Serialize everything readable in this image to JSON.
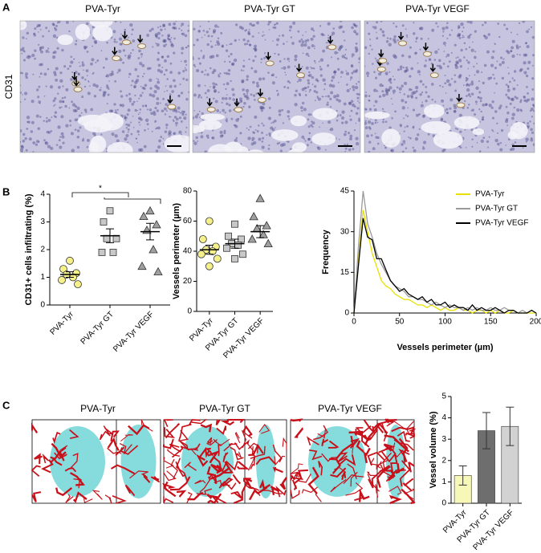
{
  "panel_labels": [
    "A",
    "B",
    "C"
  ],
  "panel_a": {
    "row_label": "CD31",
    "titles": [
      "PVA-Tyr",
      "PVA-Tyr GT",
      "PVA-Tyr VEGF"
    ]
  },
  "panel_c": {
    "titles": [
      "PVA-Tyr",
      "PVA-Tyr GT",
      "PVA-Tyr VEGF"
    ]
  },
  "chart_data": [
    {
      "type": "dot",
      "y_label": "CD31+ cells infiltrating (%)",
      "annotation": "*",
      "categories": [
        "PVA-Tyr",
        "PVA-Tyr GT",
        "PVA-Tyr VEGF"
      ],
      "ylim": [
        0,
        4
      ],
      "yticks": [
        0,
        1,
        2,
        3,
        4
      ],
      "groups": [
        {
          "color": "#f5f08a",
          "marker": "circle",
          "values": [
            1.6,
            1.3,
            1.15,
            1.1,
            1.0,
            0.9,
            0.75
          ],
          "mean": 1.1,
          "error": 0.1
        },
        {
          "color": "#c8c8c8",
          "marker": "square",
          "values": [
            3.4,
            3.0,
            2.4,
            2.4,
            1.9,
            1.9
          ],
          "mean": 2.5,
          "error": 0.25
        },
        {
          "color": "#a0a0a0",
          "marker": "triangle",
          "values": [
            3.4,
            3.2,
            2.9,
            2.7,
            2.0,
            1.4,
            1.2
          ],
          "mean": 2.65,
          "error": 0.3
        }
      ]
    },
    {
      "type": "dot",
      "y_label": "Vessels perimeter (µm)",
      "categories": [
        "PVA-Tyr",
        "PVA-Tyr GT",
        "PVA-Tyr VEGF"
      ],
      "ylim": [
        0,
        80
      ],
      "yticks": [
        0,
        20,
        40,
        60,
        80
      ],
      "groups": [
        {
          "color": "#f5f08a",
          "marker": "circle",
          "values": [
            60,
            48,
            43,
            41,
            40,
            38,
            35,
            30
          ],
          "mean": 41,
          "error": 3
        },
        {
          "color": "#c8c8c8",
          "marker": "square",
          "values": [
            58,
            50,
            48,
            45,
            44,
            42,
            38,
            35
          ],
          "mean": 45,
          "error": 3
        },
        {
          "color": "#a0a0a0",
          "marker": "triangle",
          "values": [
            75,
            63,
            57,
            55,
            51,
            48,
            45
          ],
          "mean": 53,
          "error": 4
        }
      ]
    },
    {
      "type": "line",
      "x_label": "Vessels perimeter (µm)",
      "y_label": "Frequency",
      "legend": "top-right",
      "xlim": [
        0,
        200
      ],
      "xticks": [
        0,
        50,
        100,
        150,
        200
      ],
      "ylim": [
        0,
        45
      ],
      "yticks": [
        0,
        15,
        30,
        45
      ],
      "x": [
        0,
        5,
        10,
        15,
        20,
        25,
        30,
        35,
        40,
        45,
        50,
        55,
        60,
        65,
        70,
        75,
        80,
        85,
        90,
        95,
        100,
        105,
        110,
        115,
        120,
        125,
        130,
        135,
        140,
        145,
        150,
        155,
        160,
        165,
        170,
        175,
        180,
        185,
        190,
        195,
        200
      ],
      "series": [
        {
          "name": "PVA-Tyr",
          "color": "#e8e000",
          "values": [
            0,
            20,
            38,
            30,
            22,
            17,
            12,
            10,
            9,
            7,
            6,
            5,
            5,
            4,
            3,
            3,
            2,
            3,
            2,
            1,
            2,
            1,
            1,
            2,
            1,
            1,
            0,
            1,
            1,
            0,
            1,
            0,
            1,
            0,
            0,
            1,
            0,
            0,
            0,
            0,
            0
          ]
        },
        {
          "name": "PVA-Tyr GT",
          "color": "#9a9a9a",
          "values": [
            0,
            25,
            45,
            33,
            28,
            22,
            18,
            15,
            12,
            10,
            9,
            8,
            6,
            6,
            5,
            5,
            4,
            3,
            4,
            3,
            2,
            3,
            2,
            2,
            1,
            2,
            1,
            2,
            1,
            1,
            2,
            1,
            1,
            2,
            1,
            1,
            0,
            1,
            0,
            1,
            0
          ]
        },
        {
          "name": "PVA-Tyr VEGF",
          "color": "#000000",
          "values": [
            0,
            18,
            35,
            28,
            27,
            20,
            20,
            16,
            12,
            10,
            8,
            9,
            7,
            6,
            5,
            6,
            4,
            5,
            3,
            3,
            4,
            2,
            3,
            2,
            2,
            1,
            3,
            1,
            2,
            1,
            1,
            2,
            1,
            0,
            1,
            1,
            0,
            0,
            0,
            1,
            0
          ]
        }
      ]
    },
    {
      "type": "bar",
      "y_label": "Vessel volume (%)",
      "categories": [
        "PVA-Tyr",
        "PVA-Tyr GT",
        "PVA-Tyr VEGF"
      ],
      "values": [
        1.3,
        3.4,
        3.6
      ],
      "errors": [
        0.45,
        0.85,
        0.9
      ],
      "colors": [
        "#f7f7b8",
        "#6e6e6e",
        "#d2d2d2"
      ],
      "ylim": [
        0,
        5
      ],
      "yticks": [
        0,
        1,
        2,
        3,
        4,
        5
      ]
    }
  ]
}
